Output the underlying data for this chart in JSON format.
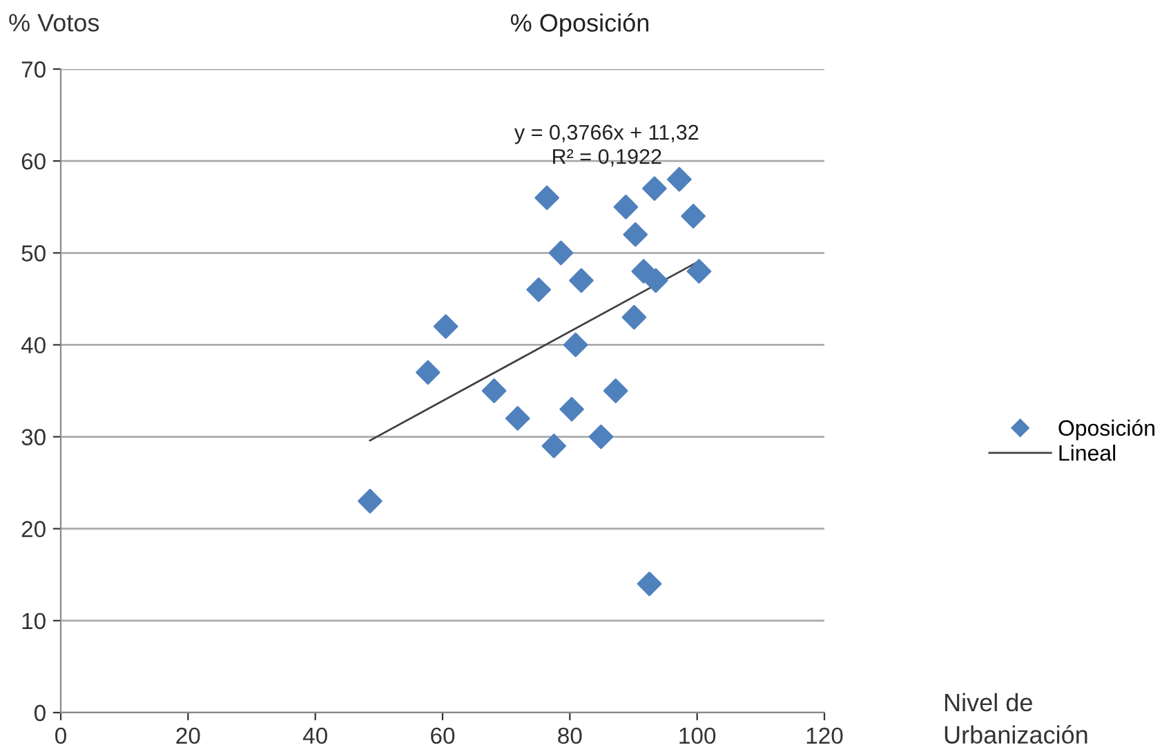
{
  "chart_data": {
    "type": "scatter",
    "title": "% Oposición",
    "ylabel": "% Votos",
    "xlabel": "Nivel de Urbanización",
    "annotations": [
      "y = 0,3766x + 11,32\nR² = 0,1922"
    ],
    "series": [
      {
        "name": "Oposición",
        "color": "#4f81bd",
        "marker": "diamond",
        "x": [
          48.6,
          57.7,
          60.5,
          68.1,
          71.8,
          75.1,
          76.4,
          77.5,
          78.6,
          80.3,
          80.9,
          81.8,
          84.9,
          87.2,
          88.8,
          90.1,
          90.3,
          91.6,
          92.5,
          93.3,
          93.5,
          97.2,
          99.4,
          100.3
        ],
        "values": [
          23,
          37,
          42,
          35,
          32,
          46,
          56,
          29,
          50,
          33,
          40,
          47,
          30,
          35,
          55,
          43,
          52,
          48,
          14,
          57,
          47,
          58,
          54,
          48
        ]
      },
      {
        "name": "Lineal",
        "type": "line",
        "color": "#404040",
        "marker": "none",
        "x": [
          48.6,
          100.3
        ],
        "values": [
          29.6,
          49.1
        ]
      }
    ],
    "xlim": [
      0,
      120
    ],
    "xticks": [
      0,
      20,
      40,
      60,
      80,
      100,
      120
    ],
    "ylim": [
      0,
      70
    ],
    "yticks": [
      0,
      10,
      20,
      30,
      40,
      50,
      60,
      70
    ],
    "grid": "y",
    "legend": "right"
  }
}
